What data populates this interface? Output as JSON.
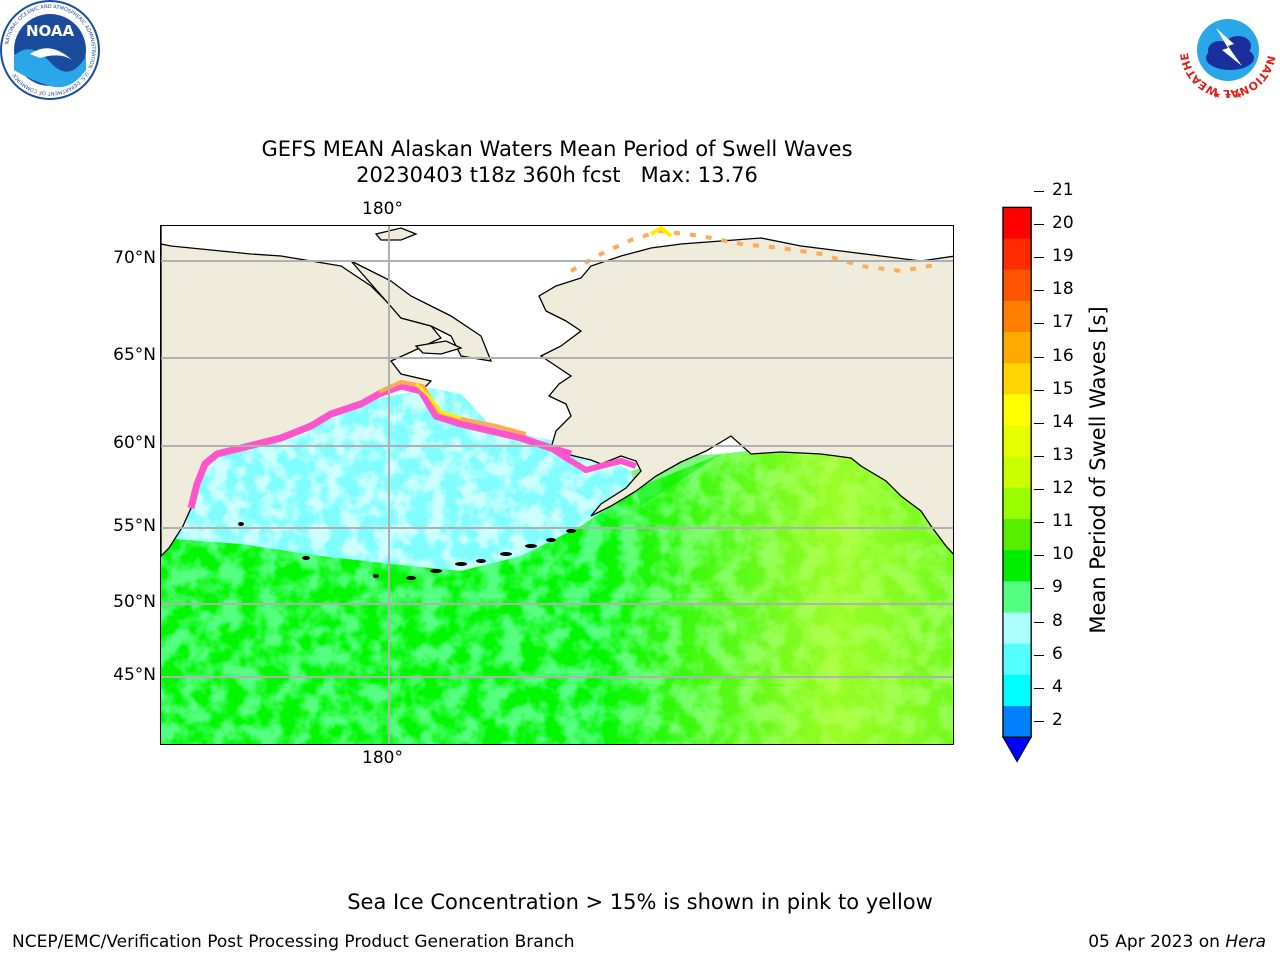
{
  "header": {
    "title_line1": "GEFS MEAN Alaskan Waters Mean Period of Swell Waves",
    "title_line2": "20230403 t18z 360h fcst   Max: 13.76"
  },
  "logos": {
    "left": {
      "name": "NOAA",
      "ring_text": "NATIONAL OCEANIC AND ATMOSPHERIC ADMINISTRATION",
      "bottom_text": "U.S. DEPARTMENT OF COMMERCE"
    },
    "right": {
      "name": "NATIONAL WEATHER SERVICE"
    }
  },
  "map": {
    "lon_label_top": "180°",
    "lon_label_bottom": "180°",
    "lat_labels": [
      "70°N",
      "65°N",
      "60°N",
      "55°N",
      "50°N",
      "45°N"
    ],
    "land_color": "#efecdb",
    "ocean_colors": {
      "cyan": "#80fdff",
      "light_cyan": "#aaffff",
      "light_green": "#55ff80",
      "green": "#00ee00",
      "yellow_green": "#ccff33"
    },
    "ice_colors": [
      "#ff55cc",
      "#ffaa55",
      "#ffee00"
    ]
  },
  "colorbar": {
    "label": "Mean Period of Swell Waves [s]",
    "ticks": [
      "21",
      "20",
      "19",
      "18",
      "17",
      "16",
      "15",
      "14",
      "13",
      "12",
      "11",
      "10",
      "9",
      "8",
      "6",
      "4",
      "2"
    ],
    "colors_top_to_bottom": [
      "#ff0000",
      "#ff2a00",
      "#ff5500",
      "#ff7f00",
      "#ffaa00",
      "#ffd400",
      "#ffff00",
      "#e6ff00",
      "#ccff00",
      "#99ff00",
      "#55ee00",
      "#00ee00",
      "#55ff80",
      "#aaffff",
      "#55ffff",
      "#00ffff",
      "#0080ff"
    ],
    "extend_color": "#0000ff"
  },
  "notes": {
    "ice_note": "Sea Ice Concentration > 15% is shown in pink to yellow"
  },
  "footer": {
    "left": "NCEP/EMC/Verification Post Processing Product Generation Branch",
    "right_date": "05 Apr 2023 on ",
    "right_host": "Hera"
  }
}
